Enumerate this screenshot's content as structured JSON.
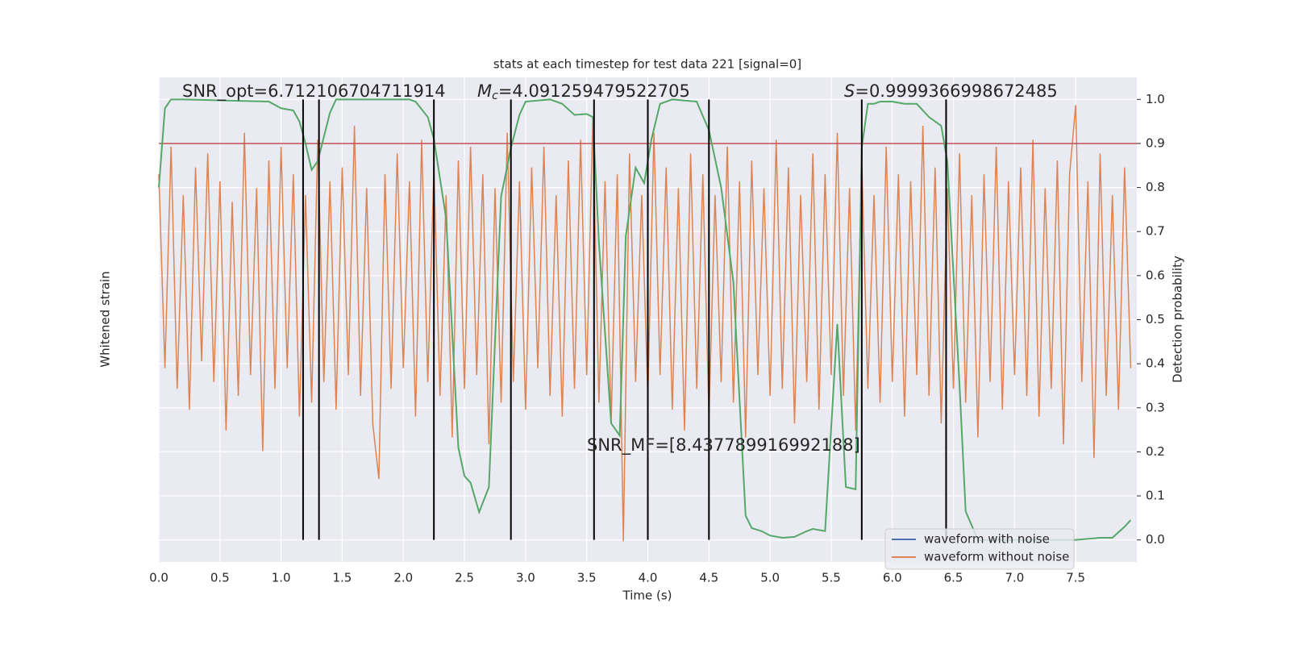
{
  "chart_data": {
    "type": "line",
    "title": "stats at each timestep for test data 221 [signal=0]",
    "xlabel": "Time (s)",
    "ylabel": "Whitened strain",
    "y2label": "Detection probability",
    "xlim": [
      0,
      8
    ],
    "xticks": [
      {
        "value": 0,
        "label": "0.0"
      },
      0.5,
      {
        "value": 1,
        "label": "1.0"
      },
      1.5,
      {
        "value": 2,
        "label": "2.0"
      },
      2.5,
      {
        "value": 3,
        "label": "3.0"
      },
      3.5,
      {
        "value": 4,
        "label": "4.0"
      },
      4.5,
      {
        "value": 5,
        "label": "5.0"
      },
      5.5,
      {
        "value": 6,
        "label": "6.0"
      },
      6.5,
      {
        "value": 7,
        "label": "7.0"
      },
      7.5
    ],
    "ylim": [
      -4,
      3
    ],
    "y2lim": [
      -0.05,
      1.05
    ],
    "y2ticks": [
      {
        "value": 0,
        "label": "0.0"
      },
      0.1,
      0.2,
      0.3,
      0.4,
      0.5,
      0.6,
      0.7,
      0.8,
      0.9,
      {
        "value": 1,
        "label": "1.0"
      }
    ],
    "grid": true,
    "legend": "lower right",
    "series": [
      {
        "name": "waveform with noise",
        "color": "#4c72b0"
      },
      {
        "name": "waveform without noise",
        "color": "#dd8452",
        "x": [
          0,
          0.05,
          0.1,
          0.15,
          0.2,
          0.25,
          0.3,
          0.35,
          0.4,
          0.45,
          0.5,
          0.55,
          0.6,
          0.65,
          0.7,
          0.75,
          0.8,
          0.85,
          0.9,
          0.95,
          1,
          1.05,
          1.1,
          1.15,
          1.2,
          1.25,
          1.3,
          1.35,
          1.4,
          1.45,
          1.5,
          1.55,
          1.6,
          1.65,
          1.7,
          1.75,
          1.8,
          1.85,
          1.9,
          1.95,
          2,
          2.05,
          2.1,
          2.15,
          2.2,
          2.25,
          2.3,
          2.35,
          2.4,
          2.45,
          2.5,
          2.55,
          2.6,
          2.65,
          2.7,
          2.75,
          2.8,
          2.85,
          2.9,
          2.95,
          3,
          3.05,
          3.1,
          3.15,
          3.2,
          3.25,
          3.3,
          3.35,
          3.4,
          3.45,
          3.5,
          3.55,
          3.6,
          3.65,
          3.7,
          3.75,
          3.8,
          3.85,
          3.9,
          3.95,
          4,
          4.05,
          4.1,
          4.15,
          4.2,
          4.25,
          4.3,
          4.35,
          4.4,
          4.45,
          4.5,
          4.55,
          4.6,
          4.65,
          4.7,
          4.75,
          4.8,
          4.85,
          4.9,
          4.95,
          5,
          5.05,
          5.1,
          5.15,
          5.2,
          5.25,
          5.3,
          5.35,
          5.4,
          5.45,
          5.5,
          5.55,
          5.6,
          5.65,
          5.7,
          5.75,
          5.8,
          5.85,
          5.9,
          5.95,
          6,
          6.05,
          6.1,
          6.15,
          6.2,
          6.25,
          6.3,
          6.35,
          6.4,
          6.45,
          6.5,
          6.55,
          6.6,
          6.65,
          6.7,
          6.75,
          6.8,
          6.85,
          6.9,
          6.95,
          7,
          7.05,
          7.1,
          7.15,
          7.2,
          7.25,
          7.3,
          7.35,
          7.4,
          7.45,
          7.5,
          7.55,
          7.6,
          7.65,
          7.7,
          7.75,
          7.8,
          7.85,
          7.9,
          7.95
        ],
        "values": [
          1.6,
          -1.2,
          2.0,
          -1.5,
          1.3,
          -1.8,
          1.7,
          -1.1,
          1.9,
          -1.4,
          1.5,
          -2.1,
          1.2,
          -1.6,
          2.2,
          -1.3,
          1.4,
          -2.4,
          1.8,
          -1.5,
          2.0,
          -1.2,
          1.6,
          -1.9,
          1.3,
          -1.7,
          2.1,
          -1.4,
          1.5,
          -1.8,
          1.7,
          -1.3,
          2.3,
          -1.6,
          1.4,
          -2.0,
          -2.8,
          1.6,
          -1.5,
          1.9,
          -1.2,
          1.5,
          -1.9,
          2.1,
          -1.4,
          1.7,
          -1.6,
          1.3,
          -2.2,
          1.8,
          -1.5,
          2.0,
          -1.3,
          1.6,
          -2.3,
          1.4,
          -1.7,
          2.2,
          -1.4,
          1.5,
          -1.8,
          1.7,
          -1.2,
          2.0,
          -1.6,
          1.3,
          -1.9,
          1.8,
          -1.5,
          2.1,
          -1.3,
          2.4,
          -1.7,
          1.5,
          -2.0,
          1.6,
          -3.7,
          1.9,
          -1.4,
          1.3,
          -1.6,
          2.2,
          -1.3,
          1.7,
          -1.8,
          1.4,
          -2.1,
          1.9,
          -1.5,
          1.6,
          -1.9,
          1.3,
          -1.4,
          2.0,
          -1.7,
          1.5,
          -2.2,
          1.8,
          -1.3,
          1.4,
          -1.6,
          2.1,
          -1.5,
          1.7,
          -2.0,
          1.3,
          -1.4,
          1.9,
          -1.8,
          1.6,
          -1.3,
          2.2,
          -1.6,
          1.4,
          -2.1,
          1.8,
          -1.5,
          1.3,
          -1.7,
          2.0,
          -1.4,
          1.6,
          -1.9,
          1.5,
          -1.3,
          2.3,
          -1.6,
          1.7,
          -2.0,
          1.4,
          -1.5,
          1.9,
          -1.7,
          1.3,
          -2.2,
          1.6,
          -1.4,
          2.0,
          -1.8,
          1.5,
          -1.3,
          1.7,
          -1.6,
          2.1,
          -1.9,
          1.4,
          -1.5,
          1.8,
          -2.3,
          1.6,
          2.6,
          -1.4,
          1.5,
          -2.5,
          1.9,
          -1.6,
          1.3,
          -1.8,
          1.7,
          -1.2
        ]
      }
    ],
    "probability": {
      "color": "#55a868",
      "axis": "y2",
      "x": [
        0,
        0.05,
        0.1,
        0.2,
        0.9,
        1.0,
        1.1,
        1.15,
        1.2,
        1.25,
        1.3,
        1.4,
        1.45,
        2.05,
        2.1,
        2.2,
        2.25,
        2.35,
        2.45,
        2.5,
        2.55,
        2.62,
        2.7,
        2.8,
        2.88,
        2.95,
        3.0,
        3.2,
        3.3,
        3.4,
        3.5,
        3.55,
        3.6,
        3.7,
        3.77,
        3.82,
        3.9,
        3.97,
        4.03,
        4.1,
        4.2,
        4.4,
        4.5,
        4.6,
        4.7,
        4.8,
        4.85,
        4.93,
        5.0,
        5.1,
        5.2,
        5.3,
        5.35,
        5.45,
        5.55,
        5.62,
        5.7,
        5.75,
        5.8,
        5.85,
        5.9,
        6.0,
        6.1,
        6.2,
        6.3,
        6.4,
        6.45,
        6.55,
        6.6,
        6.7,
        7.5,
        7.7,
        7.8,
        7.9,
        7.95
      ],
      "values": [
        0.8,
        0.98,
        1.0,
        1.0,
        0.995,
        0.98,
        0.975,
        0.95,
        0.9,
        0.84,
        0.86,
        0.97,
        1.0,
        1.0,
        0.995,
        0.96,
        0.91,
        0.73,
        0.21,
        0.145,
        0.13,
        0.063,
        0.12,
        0.78,
        0.89,
        0.965,
        0.995,
        1.0,
        0.99,
        0.965,
        0.967,
        0.96,
        0.675,
        0.265,
        0.237,
        0.69,
        0.845,
        0.81,
        0.91,
        0.99,
        1.0,
        0.995,
        0.93,
        0.8,
        0.585,
        0.055,
        0.027,
        0.02,
        0.01,
        0.005,
        0.007,
        0.02,
        0.025,
        0.02,
        0.49,
        0.12,
        0.115,
        0.89,
        0.99,
        0.99,
        0.995,
        0.995,
        0.99,
        0.99,
        0.96,
        0.94,
        0.86,
        0.35,
        0.065,
        0,
        0,
        0.005,
        0.005,
        0.03,
        0.045
      ]
    },
    "threshold": {
      "value": 0.9,
      "color": "#c44e52"
    },
    "vlines": {
      "x": [
        1.18,
        1.31,
        2.25,
        2.88,
        3.56,
        4.0,
        4.5,
        5.75,
        6.44
      ],
      "span": [
        0,
        1
      ],
      "color": "#000000"
    },
    "annotations": [
      {
        "text": "SNR_opt=6.712106704711914"
      },
      {
        "symbol": "M",
        "subscript": "c",
        "text": "=4.091259479522705"
      },
      {
        "symbol": "S",
        "text": "=0.9999366998672485"
      },
      {
        "text": "SNR_MF=[8.437789916992188]"
      }
    ]
  }
}
